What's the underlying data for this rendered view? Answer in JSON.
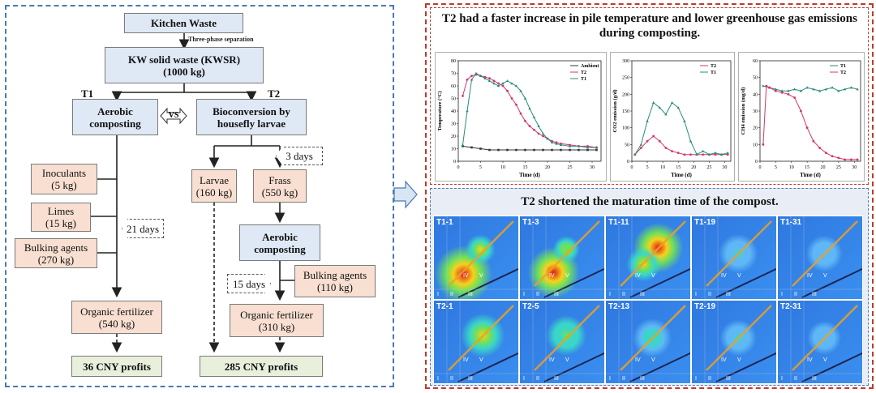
{
  "flow": {
    "kitchen_waste": "Kitchen Waste",
    "three_phase": "Three-phase separation",
    "kwsr": "KW solid waste (KWSR)\n(1000 kg)",
    "t1_label": "T1",
    "t2_label": "T2",
    "aerobic_t1": "Aerobic\ncomposting",
    "vs": "VS",
    "bioconversion": "Bioconversion by\nhousefly larvae",
    "inoculants": "Inoculants\n(5 kg)",
    "limes": "Limes\n(15 kg)",
    "bulking_t1": "Bulking agents\n(270 kg)",
    "days_21": "21 days",
    "days_3": "3 days",
    "larvae": "Larvae\n(160 kg)",
    "frass": "Frass\n(550 kg)",
    "aerobic_t2": "Aerobic\ncomposting",
    "days_15": "15 days",
    "bulking_t2": "Bulking agents\n(110 kg)",
    "fert_t1": "Organic fertilizer\n(540 kg)",
    "fert_t2": "Organic fertilizer\n(310 kg)",
    "profit_t1": "36 CNY profits",
    "profit_t2": "285 CNY profits"
  },
  "top_panel": {
    "title": "T2 had a faster increase in pile temperature and lower greenhouse gas emissions during composting."
  },
  "bottom_panel": {
    "title": "T2 shortened the maturation time of the compost.",
    "row1": [
      "T1-1",
      "T1-3",
      "T1-11",
      "T1-19",
      "T1-31"
    ],
    "row2": [
      "T2-1",
      "T2-5",
      "T2-13",
      "T2-19",
      "T2-31"
    ],
    "regions": [
      "I",
      "II",
      "III",
      "IV",
      "V"
    ]
  },
  "colors": {
    "blue_box": "#dfe9f5",
    "peach_box": "#f8dfd1",
    "green_box": "#e8f0dc",
    "red_border": "#c0392b",
    "blue_border": "#4a78b5"
  },
  "chart_data": [
    {
      "type": "line",
      "xlabel": "Time (d)",
      "ylabel": "Temperature (°C)",
      "xlim": [
        0,
        32
      ],
      "ylim": [
        0,
        80
      ],
      "xticks": [
        0,
        5,
        10,
        15,
        20,
        25,
        30
      ],
      "yticks": [
        0,
        10,
        20,
        30,
        40,
        50,
        60,
        70,
        80
      ],
      "legend": "top-right",
      "series": [
        {
          "name": "Ambient",
          "x": [
            1,
            3,
            5,
            7,
            9,
            11,
            13,
            15,
            17,
            19,
            21,
            23,
            25,
            27,
            29,
            31
          ],
          "y": [
            12,
            11,
            10,
            9,
            9,
            9,
            9,
            9,
            9,
            9,
            9,
            9,
            9,
            9,
            9,
            9
          ]
        },
        {
          "name": "T2",
          "x": [
            1,
            2,
            3,
            4,
            5,
            6,
            7,
            8,
            9,
            10,
            11,
            12,
            13,
            14,
            15,
            16,
            17,
            18,
            19,
            20,
            21,
            22,
            23,
            25,
            27,
            29,
            31
          ],
          "y": [
            52,
            65,
            68,
            69,
            68,
            67,
            66,
            64,
            62,
            60,
            56,
            50,
            45,
            38,
            32,
            28,
            25,
            22,
            20,
            18,
            16,
            15,
            14,
            13,
            12,
            12,
            11
          ]
        },
        {
          "name": "T1",
          "x": [
            1,
            2,
            3,
            4,
            5,
            6,
            7,
            8,
            9,
            10,
            11,
            12,
            13,
            14,
            15,
            16,
            17,
            18,
            19,
            20,
            21,
            22,
            23,
            25,
            27,
            29,
            31
          ],
          "y": [
            13,
            40,
            65,
            70,
            68,
            66,
            64,
            62,
            60,
            62,
            64,
            62,
            60,
            56,
            50,
            42,
            35,
            28,
            22,
            18,
            15,
            14,
            13,
            12,
            12,
            11,
            11
          ]
        }
      ]
    },
    {
      "type": "line",
      "xlabel": "Time (d)",
      "ylabel": "CO2 emission (g/d)",
      "xlim": [
        0,
        32
      ],
      "ylim": [
        0,
        300
      ],
      "xticks": [
        0,
        5,
        10,
        15,
        20,
        25,
        30
      ],
      "yticks": [
        0,
        50,
        100,
        150,
        200,
        250,
        300
      ],
      "legend": "top-right",
      "series": [
        {
          "name": "T2",
          "x": [
            1,
            3,
            5,
            7,
            9,
            11,
            13,
            15,
            17,
            19,
            21,
            23,
            25,
            27,
            29,
            31
          ],
          "y": [
            20,
            40,
            60,
            75,
            60,
            40,
            30,
            25,
            20,
            20,
            20,
            20,
            20,
            20,
            20,
            20
          ]
        },
        {
          "name": "T1",
          "x": [
            1,
            3,
            5,
            7,
            9,
            11,
            13,
            15,
            17,
            19,
            21,
            23,
            25,
            27,
            29,
            31
          ],
          "y": [
            20,
            50,
            120,
            175,
            160,
            140,
            175,
            160,
            120,
            60,
            20,
            30,
            20,
            25,
            20,
            25
          ]
        }
      ]
    },
    {
      "type": "line",
      "xlabel": "Time (d)",
      "ylabel": "CH4 emission (mg/d)",
      "xlim": [
        0,
        32
      ],
      "ylim": [
        0,
        60
      ],
      "xticks": [
        0,
        5,
        10,
        15,
        20,
        25,
        30
      ],
      "yticks": [
        0,
        10,
        20,
        30,
        40,
        50,
        60
      ],
      "legend": "top-right",
      "series": [
        {
          "name": "T1",
          "x": [
            1,
            3,
            5,
            7,
            9,
            11,
            13,
            15,
            17,
            19,
            21,
            23,
            25,
            27,
            29,
            31
          ],
          "y": [
            45,
            44,
            43,
            42,
            42,
            43,
            42,
            44,
            43,
            42,
            43,
            44,
            42,
            43,
            44,
            43
          ]
        },
        {
          "name": "T2",
          "x": [
            1,
            2,
            3,
            5,
            7,
            9,
            11,
            13,
            15,
            17,
            19,
            21,
            23,
            25,
            27,
            29,
            31
          ],
          "y": [
            10,
            45,
            44,
            42,
            41,
            40,
            38,
            30,
            20,
            12,
            8,
            5,
            3,
            2,
            1,
            1,
            1
          ]
        }
      ]
    }
  ]
}
